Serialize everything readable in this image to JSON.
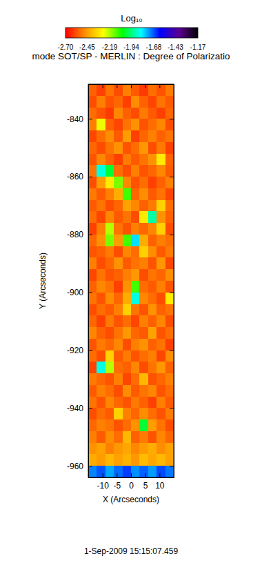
{
  "chart_data": {
    "type": "heatmap",
    "title": "mode SOT/SP - MERLIN : Degree of Polarizatio",
    "x_label": "X (Arcseconds)",
    "y_label": "Y (Arcseconds)",
    "annotation": "1-Sep-2009 15:15:07.459",
    "xlim": [
      -15,
      15
    ],
    "xticks": [
      -10,
      -5,
      0,
      5,
      10
    ],
    "ylim": [
      -964,
      -828
    ],
    "yticks": [
      -960,
      -940,
      -920,
      -900,
      -880,
      -860,
      -840
    ],
    "x": [
      -15,
      -12,
      -9,
      -6,
      -3,
      0,
      3,
      6,
      9,
      12,
      15
    ],
    "y": [
      -828,
      -832,
      -836,
      -840,
      -844,
      -848,
      -852,
      -856,
      -860,
      -864,
      -868,
      -872,
      -876,
      -880,
      -884,
      -888,
      -892,
      -896,
      -900,
      -904,
      -908,
      -912,
      -916,
      -920,
      -924,
      -928,
      -932,
      -936,
      -940,
      -944,
      -948,
      -952,
      -956,
      -960,
      -964
    ],
    "z": [
      [
        -2.55,
        -2.6,
        -2.52,
        -2.58,
        -2.5,
        -2.56,
        -2.61,
        -2.53,
        -2.57,
        -2.51
      ],
      [
        -2.58,
        -2.5,
        -2.57,
        -2.54,
        -2.6,
        -2.48,
        -2.55,
        -2.59,
        -2.52,
        -2.56
      ],
      [
        -2.53,
        -2.57,
        -2.61,
        -2.49,
        -2.55,
        -2.58,
        -2.51,
        -2.56,
        -2.6,
        -2.54
      ],
      [
        -2.5,
        -2.25,
        -2.55,
        -2.59,
        -2.52,
        -2.47,
        -2.57,
        -2.53,
        -2.49,
        -2.58
      ],
      [
        -2.59,
        -2.53,
        -2.48,
        -2.56,
        -2.45,
        -2.6,
        -2.54,
        -2.5,
        -2.55,
        -2.52
      ],
      [
        -2.54,
        -2.58,
        -2.52,
        -2.47,
        -2.57,
        -2.53,
        -2.46,
        -2.58,
        -2.51,
        -2.6
      ],
      [
        -2.57,
        -2.49,
        -2.55,
        -2.6,
        -2.51,
        -2.56,
        -2.52,
        -2.47,
        -2.3,
        -2.55
      ],
      [
        -2.52,
        -1.85,
        -2.0,
        -2.53,
        -2.58,
        -2.5,
        -2.57,
        -2.54,
        -2.49,
        -2.56
      ],
      [
        -2.58,
        -2.45,
        -2.3,
        -2.15,
        -2.49,
        -2.57,
        -2.53,
        -2.6,
        -2.55,
        -2.5
      ],
      [
        -2.51,
        -2.56,
        -2.5,
        -2.42,
        -2.1,
        -2.54,
        -2.48,
        -2.56,
        -2.52,
        -2.59
      ],
      [
        -2.56,
        -2.52,
        -2.58,
        -2.54,
        -2.44,
        -2.49,
        -2.55,
        -2.51,
        -2.35,
        -2.53
      ],
      [
        -2.53,
        -2.59,
        -2.49,
        -2.56,
        -2.52,
        -2.58,
        -2.3,
        -1.9,
        -2.47,
        -2.55
      ],
      [
        -2.6,
        -2.5,
        -2.2,
        -2.52,
        -2.57,
        -2.5,
        -2.54,
        -2.49,
        -2.35,
        -2.58
      ],
      [
        -2.54,
        -2.47,
        -2.15,
        -2.45,
        -2.1,
        -1.8,
        -2.42,
        -2.55,
        -2.5,
        -2.53
      ],
      [
        -2.57,
        -2.55,
        -2.51,
        -2.58,
        -2.49,
        -2.53,
        -2.35,
        -2.48,
        -2.56,
        -2.51
      ],
      [
        -2.5,
        -2.58,
        -2.54,
        -2.47,
        -2.56,
        -2.52,
        -2.5,
        -2.57,
        -2.46,
        -2.59
      ],
      [
        -2.59,
        -2.52,
        -2.57,
        -2.55,
        -2.5,
        -2.46,
        -2.58,
        -2.52,
        -2.54,
        -2.48
      ],
      [
        -2.55,
        -2.49,
        -2.52,
        -2.6,
        -2.47,
        -2.1,
        -2.53,
        -2.56,
        -2.5,
        -2.57
      ],
      [
        -2.52,
        -2.57,
        -2.48,
        -2.54,
        -2.42,
        -1.85,
        -2.49,
        -2.53,
        -2.58,
        -2.3
      ],
      [
        -2.58,
        -2.53,
        -2.56,
        -2.5,
        -2.35,
        -2.52,
        -2.57,
        -2.47,
        -2.55,
        -2.52
      ],
      [
        -2.54,
        -2.6,
        -2.51,
        -2.57,
        -2.53,
        -2.59,
        -2.5,
        -2.55,
        -2.49,
        -2.58
      ],
      [
        -2.49,
        -2.55,
        -2.58,
        -2.52,
        -2.46,
        -2.54,
        -2.56,
        -2.44,
        -2.57,
        -2.53
      ],
      [
        -2.57,
        -2.51,
        -2.54,
        -2.49,
        -2.58,
        -2.5,
        -2.47,
        -2.55,
        -2.52,
        -2.6
      ],
      [
        -2.53,
        -2.58,
        -2.35,
        -2.56,
        -2.51,
        -2.57,
        -2.53,
        -2.5,
        -2.59,
        -2.48
      ],
      [
        -2.6,
        -1.85,
        -2.2,
        -2.53,
        -2.55,
        -2.49,
        -2.58,
        -2.52,
        -2.46,
        -2.55
      ],
      [
        -2.51,
        -2.54,
        -2.57,
        -2.5,
        -2.59,
        -2.53,
        -2.4,
        -2.57,
        -2.54,
        -2.5
      ],
      [
        -2.56,
        -2.5,
        -2.53,
        -2.58,
        -2.48,
        -2.56,
        -2.52,
        -2.49,
        -2.57,
        -2.53
      ],
      [
        -2.52,
        -2.57,
        -2.49,
        -2.54,
        -2.57,
        -2.51,
        -2.55,
        -2.6,
        -2.5,
        -2.56
      ],
      [
        -2.58,
        -2.53,
        -2.56,
        -2.35,
        -2.5,
        -2.54,
        -2.48,
        -2.53,
        -2.57,
        -2.51
      ],
      [
        -2.54,
        -2.5,
        -2.52,
        -2.57,
        -2.53,
        -2.47,
        -2.0,
        -2.45,
        -2.52,
        -2.58
      ],
      [
        -2.5,
        -2.56,
        -2.48,
        -2.53,
        -2.4,
        -2.55,
        -2.51,
        -2.57,
        -2.49,
        -2.54
      ],
      [
        -2.47,
        -2.44,
        -2.5,
        -2.46,
        -2.43,
        -2.49,
        -2.45,
        -2.42,
        -2.48,
        -2.44
      ],
      [
        -2.42,
        -2.45,
        -2.4,
        -2.44,
        -2.41,
        -2.46,
        -2.39,
        -2.43,
        -2.4,
        -2.44
      ],
      [
        -1.72,
        -1.68,
        -1.75,
        -1.7,
        -1.66,
        -1.73,
        -1.69,
        -1.74,
        -1.67,
        -1.71
      ]
    ],
    "colorbar": {
      "label": "Log₁₀",
      "range": [
        -2.7,
        -1.17
      ],
      "ticks": [
        {
          "value": -2.7,
          "label": "-2.70"
        },
        -2.45,
        -2.19,
        -1.94,
        -1.68,
        -1.43,
        -1.17
      ],
      "colors": [
        "#ff0000",
        "#ff8c00",
        "#ffff00",
        "#00ff00",
        "#00ffff",
        "#0000ff",
        "#5a0090",
        "#000000"
      ]
    }
  }
}
